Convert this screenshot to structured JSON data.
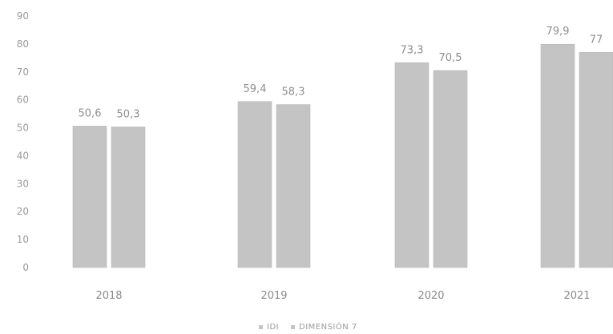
{
  "chart_data": {
    "type": "bar",
    "categories": [
      "2018",
      "2019",
      "2020",
      "2021"
    ],
    "series": [
      {
        "name": "IDI",
        "values": [
          50.6,
          59.4,
          73.3,
          79.9
        ]
      },
      {
        "name": "DIMENSIÓN 7",
        "values": [
          50.3,
          58.3,
          70.5,
          77
        ]
      }
    ],
    "data_labels": [
      [
        "50,6",
        "59,4",
        "73,3",
        "79,9"
      ],
      [
        "50,3",
        "58,3",
        "70,5",
        "77"
      ]
    ],
    "y_ticks": [
      "0",
      "10",
      "20",
      "30",
      "40",
      "50",
      "60",
      "70",
      "80",
      "90"
    ],
    "ylim": [
      0,
      90
    ],
    "grid": false,
    "legend_position": "bottom",
    "colors": {
      "bars": "#c4c4c4",
      "bar_edge": "#b8b8b8",
      "text": "#8e8e8e"
    }
  }
}
